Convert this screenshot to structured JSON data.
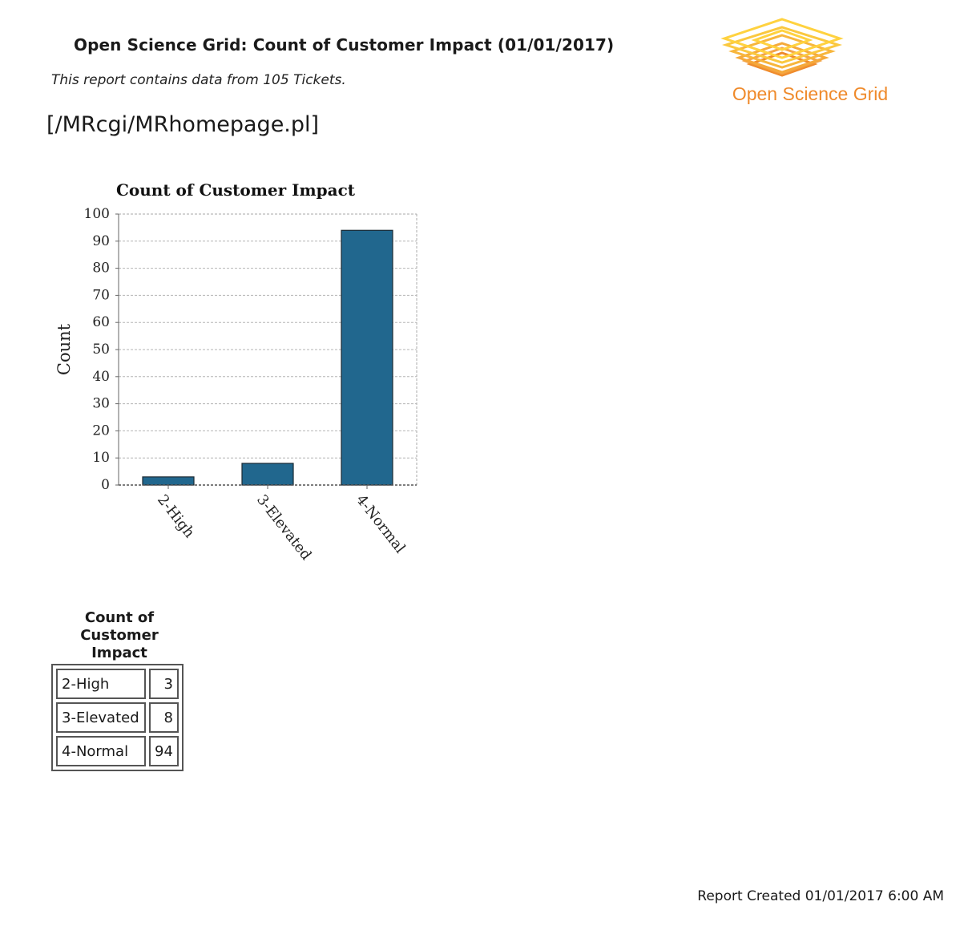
{
  "header": {
    "title": "Open Science Grid: Count of Customer Impact (01/01/2017)",
    "subtitle": "This report contains data from 105 Tickets.",
    "link_text": "[/MRcgi/MRhomepage.pl]"
  },
  "logo": {
    "text": "Open Science Grid",
    "color_top": "#ffd23f",
    "color_bottom": "#ef8a2b"
  },
  "chart_data": {
    "type": "bar",
    "title": "Count of Customer Impact",
    "xlabel": "",
    "ylabel": "Count",
    "categories": [
      "2-High",
      "3-Elevated",
      "4-Normal"
    ],
    "values": [
      3,
      8,
      94
    ],
    "ylim": [
      0,
      100
    ],
    "yticks": [
      0,
      10,
      20,
      30,
      40,
      50,
      60,
      70,
      80,
      90,
      100
    ],
    "grid": true,
    "bar_color": "#21678e"
  },
  "table": {
    "caption": "Count of Customer Impact",
    "rows": [
      {
        "category": "2-High",
        "count": "3"
      },
      {
        "category": "3-Elevated",
        "count": "8"
      },
      {
        "category": "4-Normal",
        "count": "94"
      }
    ]
  },
  "footer": {
    "created": "Report Created 01/01/2017 6:00 AM"
  }
}
